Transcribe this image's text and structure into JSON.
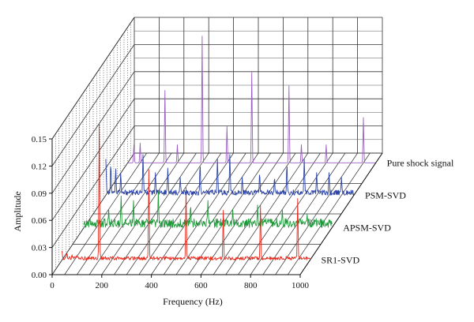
{
  "chart_data": {
    "type": "line",
    "xlabel": "Frequency (Hz)",
    "ylabel": "Amplitude",
    "x_ticks": [
      "0",
      "200",
      "400",
      "600",
      "800",
      "1000"
    ],
    "y_ticks": [
      "0.00",
      "0.03",
      "0.06",
      "0.09",
      "0.12",
      "0.15"
    ],
    "xlim": [
      0,
      1000
    ],
    "ylim": [
      0,
      0.15
    ],
    "grid": true,
    "view": "3D waterfall",
    "series": [
      {
        "name": "SR1-SVD",
        "color": "#e8291c",
        "noise": 0.004,
        "peaks": [
          {
            "x": 0,
            "y": 0.01
          },
          {
            "x": 20,
            "y": 0.008
          },
          {
            "x": 40,
            "y": 0.006
          },
          {
            "x": 60,
            "y": 0.005
          },
          {
            "x": 80,
            "y": 0.004
          },
          {
            "x": 150,
            "y": 0.15
          },
          {
            "x": 350,
            "y": 0.1
          },
          {
            "x": 500,
            "y": 0.08
          },
          {
            "x": 650,
            "y": 0.055
          },
          {
            "x": 800,
            "y": 0.06
          },
          {
            "x": 950,
            "y": 0.068
          }
        ]
      },
      {
        "name": "APSM-SVD",
        "color": "#1e9a3a",
        "noise": 0.01,
        "peaks": [
          {
            "x": 100,
            "y": 0.02
          },
          {
            "x": 150,
            "y": 0.035
          },
          {
            "x": 200,
            "y": 0.03
          },
          {
            "x": 300,
            "y": 0.04
          },
          {
            "x": 430,
            "y": 0.025
          },
          {
            "x": 500,
            "y": 0.03
          },
          {
            "x": 600,
            "y": 0.02
          },
          {
            "x": 700,
            "y": 0.025
          },
          {
            "x": 800,
            "y": 0.02
          },
          {
            "x": 900,
            "y": 0.015
          }
        ]
      },
      {
        "name": "PSM-SVD",
        "color": "#2c44a8",
        "noise": 0.006,
        "peaks": [
          {
            "x": 0,
            "y": 0.04
          },
          {
            "x": 20,
            "y": 0.035
          },
          {
            "x": 40,
            "y": 0.03
          },
          {
            "x": 60,
            "y": 0.025
          },
          {
            "x": 150,
            "y": 0.045
          },
          {
            "x": 200,
            "y": 0.025
          },
          {
            "x": 250,
            "y": 0.03
          },
          {
            "x": 300,
            "y": 0.02
          },
          {
            "x": 380,
            "y": 0.035
          },
          {
            "x": 450,
            "y": 0.04
          },
          {
            "x": 500,
            "y": 0.045
          },
          {
            "x": 550,
            "y": 0.02
          },
          {
            "x": 620,
            "y": 0.025
          },
          {
            "x": 680,
            "y": 0.02
          },
          {
            "x": 730,
            "y": 0.035
          },
          {
            "x": 800,
            "y": 0.04
          },
          {
            "x": 850,
            "y": 0.025
          },
          {
            "x": 900,
            "y": 0.025
          },
          {
            "x": 950,
            "y": 0.02
          }
        ]
      },
      {
        "name": "Pure shock signal",
        "color": "#9b5fc0",
        "noise": 0,
        "peaks": [
          {
            "x": 25,
            "y": 0.02
          },
          {
            "x": 50,
            "y": 0.022
          },
          {
            "x": 150,
            "y": 0.08
          },
          {
            "x": 200,
            "y": 0.02
          },
          {
            "x": 300,
            "y": 0.14
          },
          {
            "x": 400,
            "y": 0.04
          },
          {
            "x": 500,
            "y": 0.1
          },
          {
            "x": 650,
            "y": 0.085
          },
          {
            "x": 700,
            "y": 0.02
          },
          {
            "x": 800,
            "y": 0.02
          },
          {
            "x": 950,
            "y": 0.05
          }
        ]
      }
    ]
  }
}
